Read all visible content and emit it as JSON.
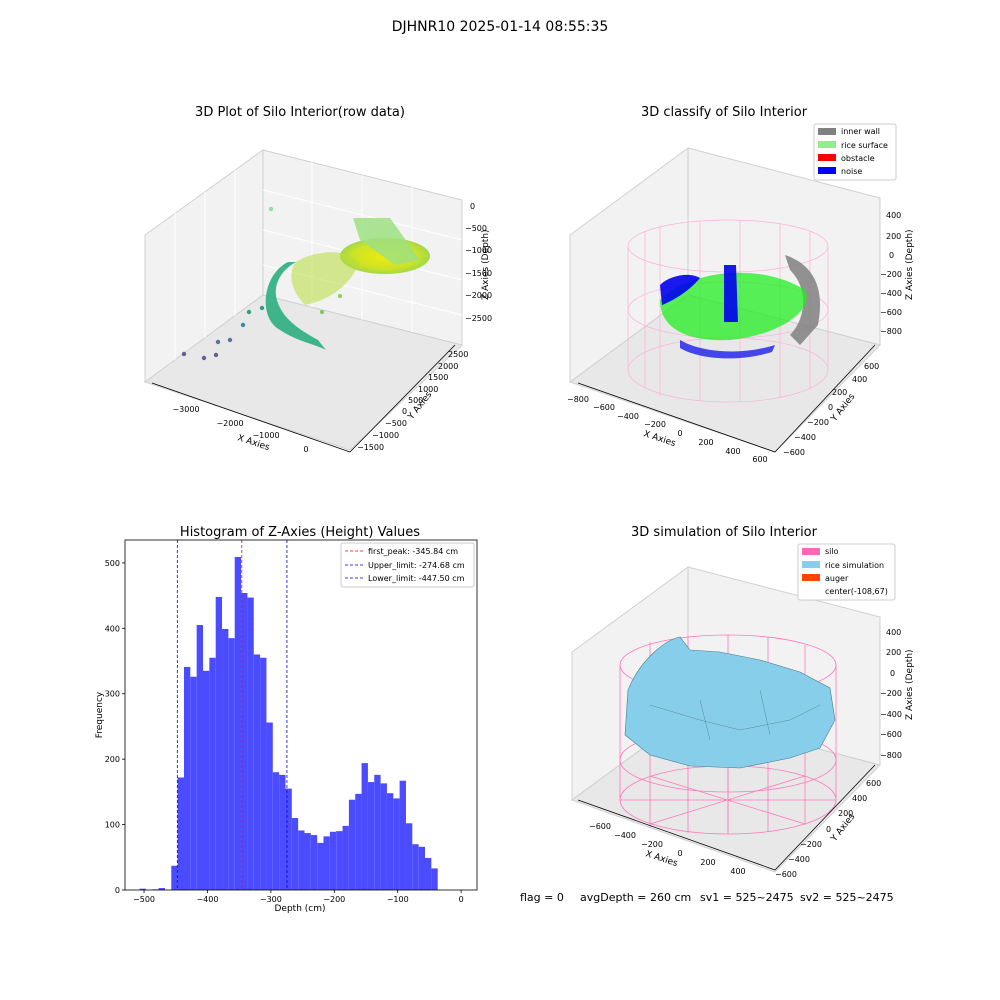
{
  "figure": {
    "suptitle": "DJHNR10 2025-01-14 08:55:35",
    "status": {
      "flag": "flag = 0",
      "avg_depth": "avgDepth = 260 cm",
      "sv1": "sv1 = 525~2475",
      "sv2": "sv2 = 525~2475"
    }
  },
  "colors": {
    "hist_bar": "#4b4bff",
    "first_peak": "#ff0000",
    "limits": "#0000cc",
    "inner_wall": "#808080",
    "rice_surface": "#90ee90",
    "obstacle": "#ff0000",
    "noise": "#0000ff",
    "silo": "#ff69b4",
    "rice_simulation": "#87ceeb",
    "auger": "#ff4500"
  },
  "panels": {
    "raw": {
      "title": "3D Plot of Silo Interior(row data)",
      "xlabel": "X Axies",
      "ylabel": "Y Axies",
      "zlabel": "Z Axies (Depth)",
      "xticks": [
        "−3000",
        "−2000",
        "−1000",
        "0"
      ],
      "yticks": [
        "−1500",
        "−1000",
        "−500",
        "0",
        "500",
        "1000",
        "1500",
        "2000",
        "2500"
      ],
      "zticks": [
        "0",
        "−500",
        "−1000",
        "−1500",
        "−2000",
        "−2500"
      ]
    },
    "classify": {
      "title": "3D classify of Silo Interior",
      "xlabel": "X Axies",
      "ylabel": "Y Axies",
      "zlabel": "Z Axies (Depth)",
      "xticks": [
        "−800",
        "−600",
        "−400",
        "−200",
        "0",
        "200",
        "400",
        "600"
      ],
      "yticks": [
        "−600",
        "−400",
        "−200",
        "0",
        "200",
        "400",
        "600"
      ],
      "zticks": [
        "400",
        "200",
        "0",
        "−200",
        "−400",
        "−600",
        "−800"
      ],
      "legend": [
        "inner wall",
        "rice surface",
        "obstacle",
        "noise"
      ]
    },
    "simulation": {
      "title": "3D simulation of Silo Interior",
      "xlabel": "X Axies",
      "ylabel": "Y Axies",
      "zlabel": "Z Axies (Depth)",
      "xticks": [
        "−600",
        "−400",
        "−200",
        "0",
        "200",
        "400"
      ],
      "yticks": [
        "−600",
        "−400",
        "−200",
        "0",
        "200",
        "400",
        "600"
      ],
      "zticks": [
        "400",
        "200",
        "0",
        "−200",
        "−400",
        "−600",
        "−800"
      ],
      "legend": [
        "silo",
        "rice simulation",
        "auger",
        "center(-108,67)"
      ]
    }
  },
  "chart_data": {
    "type": "bar",
    "title": "Histogram of Z-Axies (Height) Values",
    "xlabel": "Depth (cm)",
    "ylabel": "Frequency",
    "xlim": [
      -530,
      25
    ],
    "ylim": [
      0,
      535
    ],
    "xticks": [
      -500,
      -400,
      -300,
      -200,
      -100,
      0
    ],
    "yticks": [
      0,
      100,
      200,
      300,
      400,
      500
    ],
    "bin_start": -507,
    "bin_width": 10,
    "values": [
      2,
      0,
      1,
      3,
      0,
      37,
      172,
      341,
      326,
      405,
      335,
      355,
      448,
      399,
      385,
      509,
      454,
      447,
      360,
      355,
      256,
      180,
      176,
      155,
      110,
      91,
      87,
      84,
      72,
      82,
      89,
      90,
      98,
      138,
      147,
      194,
      165,
      176,
      163,
      148,
      140,
      167,
      102,
      70,
      66,
      49,
      33
    ],
    "vlines": [
      {
        "name": "first_peak: -345.84 cm",
        "x": -345.84,
        "color_key": "first_peak"
      },
      {
        "name": "Upper_limit: -274.68 cm",
        "x": -274.68,
        "color_key": "limits"
      },
      {
        "name": "Lower_limit: -447.50 cm",
        "x": -447.5,
        "color_key": "limits"
      }
    ]
  }
}
